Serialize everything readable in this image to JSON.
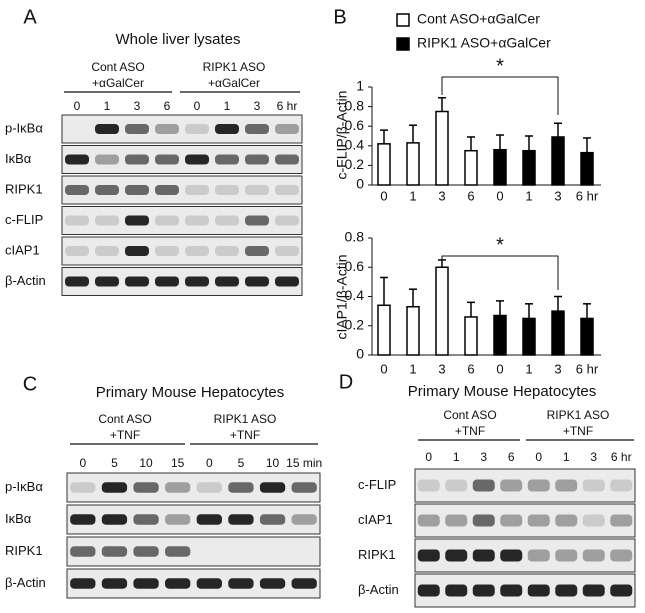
{
  "blots": [
    {
      "label": "A",
      "title": "Whole liver lysates",
      "groups": [
        [
          "Cont ASO",
          "+αGalCer"
        ],
        [
          "RIPK1 ASO",
          "+αGalCer"
        ]
      ],
      "lanes": [
        "0",
        "1",
        "3",
        "6",
        "0",
        "1",
        "3",
        "6 hr"
      ],
      "rows": [
        "p-IκBα",
        "IκBα",
        "RIPK1",
        "c-FLIP",
        "cIAP1",
        "β-Actin"
      ]
    },
    {
      "label": "C",
      "title": "Primary Mouse Hepatocytes",
      "groups": [
        [
          "Cont ASO",
          "+TNF"
        ],
        [
          "RIPK1 ASO",
          "+TNF"
        ]
      ],
      "lanes": [
        "0",
        "5",
        "10",
        "15",
        "0",
        "5",
        "10",
        "15 min"
      ],
      "rows": [
        "p-IκBα",
        "IκBα",
        "RIPK1",
        "β-Actin"
      ]
    },
    {
      "label": "D",
      "title": "Primary Mouse Hepatocytes",
      "groups": [
        [
          "Cont ASO",
          "+TNF"
        ],
        [
          "RIPK1 ASO",
          "+TNF"
        ]
      ],
      "lanes": [
        "0",
        "1",
        "3",
        "6",
        "0",
        "1",
        "3",
        "6 hr"
      ],
      "rows": [
        "c-FLIP",
        "cIAP1",
        "RIPK1",
        "β-Actin"
      ]
    }
  ],
  "chart_data": [
    {
      "type": "bar",
      "panel_label": "B",
      "ylabel": "c-FLIP/β-Actin",
      "categories": [
        "0",
        "1",
        "3",
        "6",
        "0",
        "1",
        "3",
        "6 hr"
      ],
      "series": [
        {
          "name": "Cont ASO+αGalCer",
          "color": "#ffffff",
          "values": [
            0.42,
            0.43,
            0.75,
            0.35,
            null,
            null,
            null,
            null
          ],
          "errors": [
            0.14,
            0.18,
            0.14,
            0.14,
            null,
            null,
            null,
            null
          ]
        },
        {
          "name": "RIPK1 ASO+αGalCer",
          "color": "#000000",
          "values": [
            null,
            null,
            null,
            null,
            0.36,
            0.35,
            0.49,
            0.33
          ],
          "errors": [
            null,
            null,
            null,
            null,
            0.15,
            0.15,
            0.14,
            0.15
          ]
        }
      ],
      "ylim": [
        0,
        1
      ],
      "yticks": [
        0,
        0.2,
        0.4,
        0.6,
        0.8,
        1
      ],
      "annotation": "*",
      "legend": "top"
    },
    {
      "type": "bar",
      "ylabel": "cIAP1/β-Actin",
      "categories": [
        "0",
        "1",
        "3",
        "6",
        "0",
        "1",
        "3",
        "6 hr"
      ],
      "series": [
        {
          "color": "#ffffff",
          "values": [
            0.34,
            0.33,
            0.6,
            0.26,
            null,
            null,
            null,
            null
          ],
          "errors": [
            0.19,
            0.12,
            0.05,
            0.1,
            null,
            null,
            null,
            null
          ]
        },
        {
          "color": "#000000",
          "values": [
            null,
            null,
            null,
            null,
            0.27,
            0.25,
            0.3,
            0.25
          ],
          "errors": [
            null,
            null,
            null,
            null,
            0.1,
            0.1,
            0.1,
            0.1
          ]
        }
      ],
      "ylim": [
        0,
        0.8
      ],
      "yticks": [
        0,
        0.2,
        0.4,
        0.6,
        0.8
      ],
      "annotation": "*"
    }
  ]
}
